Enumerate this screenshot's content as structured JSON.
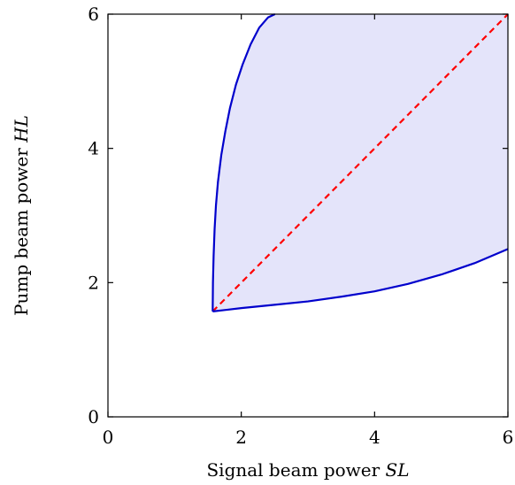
{
  "chart_data": {
    "type": "area",
    "xlabel_text": "Signal beam power",
    "xlabel_math": "SL",
    "ylabel_text": "Pump beam power",
    "ylabel_math": "HL",
    "xlim": [
      0,
      6
    ],
    "ylim": [
      0,
      6
    ],
    "xticks": [
      "0",
      "2",
      "4",
      "6"
    ],
    "yticks": [
      "0",
      "2",
      "4",
      "6"
    ],
    "grid": false,
    "colors": {
      "boundary": "#0000cc",
      "fill": "#e4e4fa",
      "diagonal": "#ff0000"
    },
    "series": [
      {
        "role": "upper-boundary",
        "style": "solid",
        "x": [
          1.571,
          1.575,
          1.585,
          1.6,
          1.62,
          1.65,
          1.7,
          1.76,
          1.83,
          1.92,
          2.02,
          2.14,
          2.27,
          2.4,
          2.505
        ],
        "y": [
          1.571,
          2.0,
          2.4,
          2.8,
          3.15,
          3.5,
          3.9,
          4.25,
          4.6,
          4.95,
          5.25,
          5.55,
          5.8,
          5.95,
          6.0
        ]
      },
      {
        "role": "lower-boundary",
        "style": "solid",
        "x": [
          1.571,
          2.0,
          2.5,
          3.0,
          3.5,
          4.0,
          4.5,
          5.0,
          5.5,
          6.0
        ],
        "y": [
          1.571,
          1.62,
          1.67,
          1.72,
          1.79,
          1.87,
          1.98,
          2.12,
          2.29,
          2.5
        ]
      },
      {
        "role": "diagonal",
        "style": "dashed",
        "x": [
          1.571,
          6.0
        ],
        "y": [
          1.571,
          6.0
        ]
      }
    ]
  }
}
